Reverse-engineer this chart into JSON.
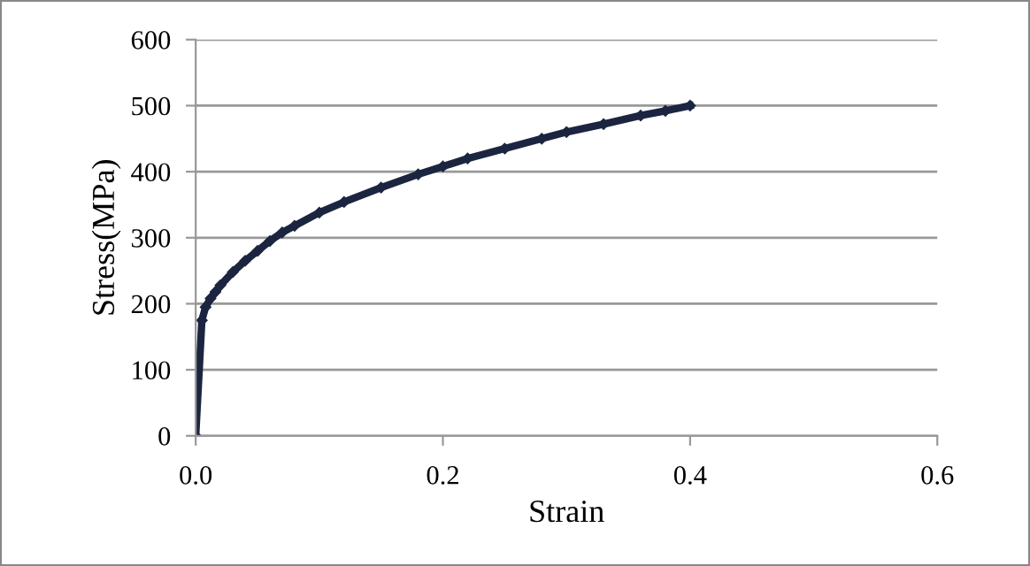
{
  "chart_data": {
    "type": "line",
    "xlabel": "Strain",
    "ylabel": "Stress(MPa)",
    "x": [
      0,
      0.005,
      0.008,
      0.012,
      0.016,
      0.02,
      0.03,
      0.04,
      0.05,
      0.06,
      0.07,
      0.08,
      0.1,
      0.12,
      0.15,
      0.18,
      0.2,
      0.22,
      0.25,
      0.28,
      0.3,
      0.33,
      0.36,
      0.38,
      0.4
    ],
    "series": [
      {
        "color": "#1c2540",
        "values": [
          0,
          175,
          195,
          208,
          218,
          228,
          248,
          265,
          280,
          295,
          308,
          318,
          338,
          354,
          376,
          396,
          408,
          420,
          435,
          450,
          460,
          472,
          485,
          492,
          500
        ]
      }
    ],
    "xlim": [
      0,
      0.6
    ],
    "xticks": [
      {
        "value": 0,
        "label": "0.0"
      },
      0.2,
      0.4,
      0.6
    ],
    "ylim": [
      0,
      600
    ],
    "yticks": [
      0,
      100,
      200,
      300,
      400,
      500,
      600
    ],
    "grid": "y",
    "marker": "diamond",
    "line_style": "solid"
  }
}
